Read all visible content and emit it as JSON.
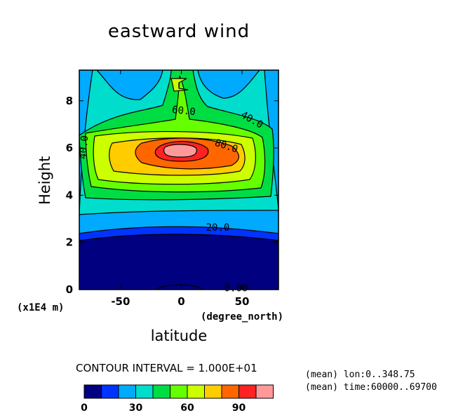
{
  "chart_data": {
    "type": "contour",
    "title": "eastward wind",
    "xlabel": "latitude",
    "ylabel": "Height",
    "x_unit": "(degree_north)",
    "y_unit": "(x1E4 m)",
    "xlim": [
      -84,
      80
    ],
    "ylim": [
      0,
      9.3
    ],
    "x_ticks": [
      -50,
      0,
      50
    ],
    "x_tick_labels": [
      "-50",
      "0",
      "50"
    ],
    "y_ticks": [
      0,
      2,
      4,
      6,
      8
    ],
    "y_tick_labels": [
      "0",
      "2",
      "4",
      "6",
      "8"
    ],
    "contour_interval": 10,
    "levels": [
      0,
      10,
      20,
      30,
      40,
      50,
      60,
      70,
      80,
      90,
      100,
      110
    ],
    "band_colors": [
      "#000080",
      "#0033ff",
      "#00aaff",
      "#00ddcc",
      "#00dd44",
      "#66ff00",
      "#ccff00",
      "#ffcc00",
      "#ff6600",
      "#ff2222",
      "#ff9999"
    ],
    "contour_labels": [
      {
        "text": "60.0",
        "x": 2,
        "y": 7.56,
        "angle": 6
      },
      {
        "text": "40.0",
        "x": 58,
        "y": 7.18,
        "angle": 30
      },
      {
        "text": "80.0",
        "x": 37,
        "y": 6.07,
        "angle": 18
      },
      {
        "text": "40.0",
        "x": -80,
        "y": 6.03,
        "angle": -85
      },
      {
        "text": "20.0",
        "x": 30,
        "y": 2.61,
        "angle": 0
      },
      {
        "text": "0.00",
        "x": 45,
        "y": 0.05,
        "angle": 0
      }
    ]
  },
  "contour_interval_text": "CONTOUR INTERVAL = 1.000E+01",
  "colorbar": {
    "colors": [
      "#000080",
      "#0033ff",
      "#00aaff",
      "#00ddcc",
      "#00dd44",
      "#66ff00",
      "#ccff00",
      "#ffcc00",
      "#ff6600",
      "#ff2222",
      "#ff9999"
    ],
    "tick_labels": [
      "0",
      "30",
      "60",
      "90"
    ]
  },
  "mean_lon": "(mean) lon:0..348.75",
  "mean_time": "(mean) time:60000..69700"
}
